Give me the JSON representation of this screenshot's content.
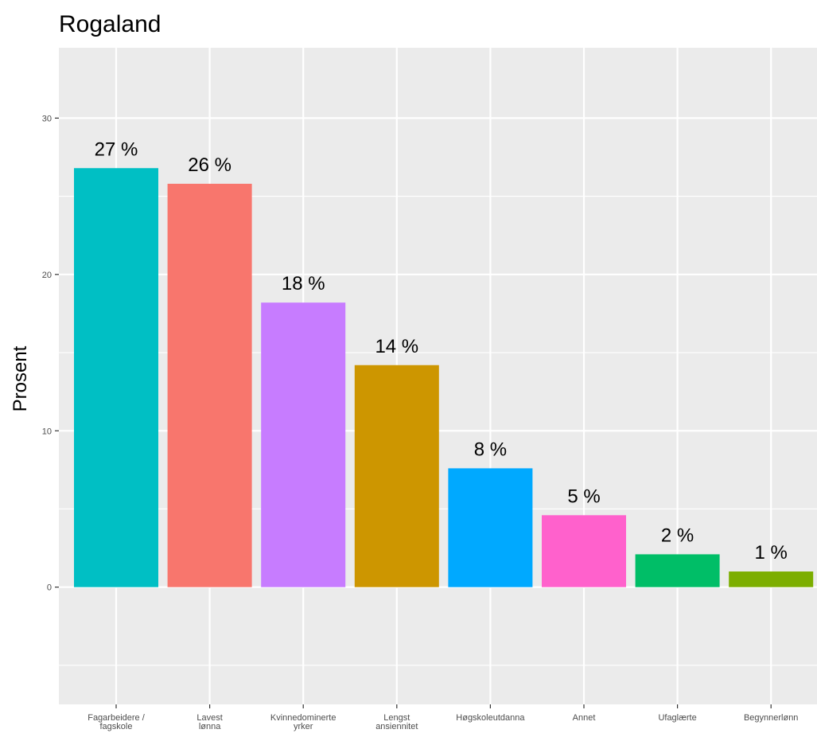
{
  "chart_data": {
    "type": "bar",
    "title": "Rogaland",
    "xlabel": "",
    "ylabel": "Prosent",
    "ylim": [
      -7.5,
      34.5
    ],
    "y_ticks": [
      0,
      10,
      20,
      30
    ],
    "grid": true,
    "legend": "none",
    "categories": [
      [
        "Fagarbeidere /",
        "fagskole"
      ],
      [
        "Lavest",
        "lønna"
      ],
      [
        "Kvinnedominerte",
        "yrker"
      ],
      [
        "Lengst",
        "ansiennitet"
      ],
      [
        "Høgskoleutdanna"
      ],
      [
        "Annet"
      ],
      [
        "Ufaglærte"
      ],
      [
        "Begynnerlønn"
      ]
    ],
    "values": [
      26.8,
      25.8,
      18.2,
      14.2,
      7.6,
      4.6,
      2.1,
      1.0
    ],
    "value_labels": [
      "27 %",
      "26 %",
      "18 %",
      "14 %",
      "8 %",
      "5 %",
      "2 %",
      "1 %"
    ],
    "colors": [
      "#00BFC4",
      "#F8766D",
      "#C77CFF",
      "#CD9600",
      "#00A9FF",
      "#FF61CC",
      "#00BE67",
      "#7CAE00"
    ],
    "panel_background": "#EBEBEB",
    "grid_color": "#FFFFFF"
  }
}
